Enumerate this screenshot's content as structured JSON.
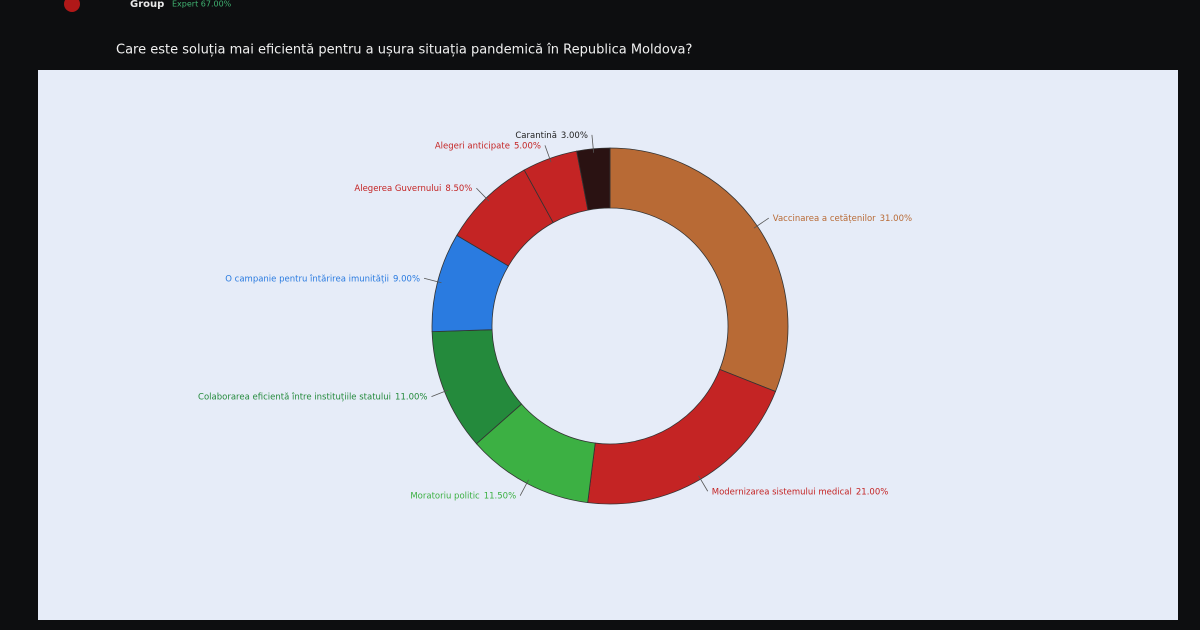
{
  "header": {
    "brand": "Group",
    "expert": "Expert 67.00%"
  },
  "chart_data": {
    "type": "donut",
    "title": "Care este soluția mai eficientă pentru a ușura situația pandemică în Republica Moldova?",
    "categories": [
      "Vaccinarea a cetățenilor",
      "Modernizarea sistemului medical",
      "Moratoriu politic",
      "Colaborarea eficientă între instituțiile statului",
      "O campanie pentru întărirea imunității",
      "Alegerea Guvernului",
      "Alegeri anticipate",
      "Carantină"
    ],
    "values": [
      31,
      21,
      11.5,
      11,
      9,
      8.5,
      5,
      3
    ],
    "value_labels": [
      "31.00%",
      "21.00%",
      "11.50%",
      "11.00%",
      "9.00%",
      "8.50%",
      "5.00%",
      "3.00%"
    ],
    "colors": [
      "#b86a35",
      "#c42424",
      "#3cb043",
      "#248a3c",
      "#2a7be0",
      "#c42424",
      "#c42424",
      "#2a1212"
    ]
  }
}
